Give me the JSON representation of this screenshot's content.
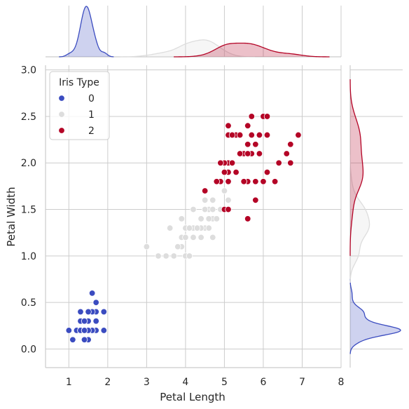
{
  "chart_data": {
    "type": "scatter",
    "xlabel": "Petal Length",
    "ylabel": "Petal Width",
    "xlim": [
      0.4,
      8.0
    ],
    "ylim": [
      -0.2,
      3.05
    ],
    "xticks": [
      1,
      2,
      3,
      4,
      5,
      6,
      7,
      8
    ],
    "yticks": [
      "0.0",
      "0.5",
      "1.0",
      "1.5",
      "2.0",
      "2.5",
      "3.0"
    ],
    "grid": true,
    "legend": {
      "title": "Iris Type",
      "placement": "upper-left"
    },
    "marginals": "kde",
    "series": [
      {
        "name": "0",
        "color": "#3b4cc0",
        "points": [
          [
            1.4,
            0.2
          ],
          [
            1.4,
            0.2
          ],
          [
            1.3,
            0.2
          ],
          [
            1.5,
            0.2
          ],
          [
            1.4,
            0.2
          ],
          [
            1.7,
            0.4
          ],
          [
            1.4,
            0.3
          ],
          [
            1.5,
            0.2
          ],
          [
            1.4,
            0.2
          ],
          [
            1.5,
            0.1
          ],
          [
            1.5,
            0.2
          ],
          [
            1.6,
            0.2
          ],
          [
            1.4,
            0.1
          ],
          [
            1.1,
            0.1
          ],
          [
            1.2,
            0.2
          ],
          [
            1.5,
            0.4
          ],
          [
            1.3,
            0.4
          ],
          [
            1.4,
            0.3
          ],
          [
            1.7,
            0.3
          ],
          [
            1.5,
            0.3
          ],
          [
            1.7,
            0.2
          ],
          [
            1.5,
            0.4
          ],
          [
            1.0,
            0.2
          ],
          [
            1.7,
            0.5
          ],
          [
            1.9,
            0.2
          ],
          [
            1.6,
            0.2
          ],
          [
            1.6,
            0.4
          ],
          [
            1.5,
            0.2
          ],
          [
            1.4,
            0.2
          ],
          [
            1.6,
            0.2
          ],
          [
            1.6,
            0.2
          ],
          [
            1.5,
            0.4
          ],
          [
            1.5,
            0.1
          ],
          [
            1.4,
            0.2
          ],
          [
            1.5,
            0.2
          ],
          [
            1.2,
            0.2
          ],
          [
            1.3,
            0.2
          ],
          [
            1.4,
            0.1
          ],
          [
            1.3,
            0.2
          ],
          [
            1.5,
            0.2
          ],
          [
            1.3,
            0.3
          ],
          [
            1.3,
            0.3
          ],
          [
            1.3,
            0.2
          ],
          [
            1.6,
            0.6
          ],
          [
            1.9,
            0.4
          ],
          [
            1.4,
            0.3
          ],
          [
            1.6,
            0.2
          ],
          [
            1.4,
            0.2
          ],
          [
            1.5,
            0.2
          ],
          [
            1.4,
            0.2
          ]
        ]
      },
      {
        "name": "1",
        "color": "#dddddd",
        "points": [
          [
            4.7,
            1.4
          ],
          [
            4.5,
            1.5
          ],
          [
            4.9,
            1.5
          ],
          [
            4.0,
            1.3
          ],
          [
            4.6,
            1.5
          ],
          [
            4.5,
            1.3
          ],
          [
            4.7,
            1.6
          ],
          [
            3.3,
            1.0
          ],
          [
            4.6,
            1.3
          ],
          [
            3.9,
            1.4
          ],
          [
            3.5,
            1.0
          ],
          [
            4.2,
            1.5
          ],
          [
            4.0,
            1.0
          ],
          [
            4.7,
            1.4
          ],
          [
            3.6,
            1.3
          ],
          [
            4.4,
            1.4
          ],
          [
            4.5,
            1.5
          ],
          [
            4.1,
            1.0
          ],
          [
            4.5,
            1.5
          ],
          [
            3.9,
            1.1
          ],
          [
            4.8,
            1.8
          ],
          [
            4.0,
            1.3
          ],
          [
            4.9,
            1.5
          ],
          [
            4.7,
            1.2
          ],
          [
            4.3,
            1.3
          ],
          [
            4.4,
            1.4
          ],
          [
            4.8,
            1.4
          ],
          [
            5.0,
            1.7
          ],
          [
            4.5,
            1.5
          ],
          [
            3.5,
            1.0
          ],
          [
            3.8,
            1.1
          ],
          [
            3.7,
            1.0
          ],
          [
            3.9,
            1.2
          ],
          [
            5.1,
            1.6
          ],
          [
            4.5,
            1.5
          ],
          [
            4.5,
            1.6
          ],
          [
            4.7,
            1.5
          ],
          [
            4.4,
            1.3
          ],
          [
            4.1,
            1.3
          ],
          [
            4.0,
            1.3
          ],
          [
            4.4,
            1.2
          ],
          [
            4.6,
            1.4
          ],
          [
            4.0,
            1.2
          ],
          [
            3.3,
            1.0
          ],
          [
            4.2,
            1.3
          ],
          [
            4.2,
            1.2
          ],
          [
            4.2,
            1.3
          ],
          [
            4.3,
            1.3
          ],
          [
            3.0,
            1.1
          ],
          [
            4.1,
            1.3
          ]
        ]
      },
      {
        "name": "2",
        "color": "#b40426",
        "points": [
          [
            6.0,
            2.5
          ],
          [
            5.1,
            1.9
          ],
          [
            5.9,
            2.1
          ],
          [
            5.6,
            1.8
          ],
          [
            5.8,
            2.2
          ],
          [
            6.6,
            2.1
          ],
          [
            4.5,
            1.7
          ],
          [
            6.3,
            1.8
          ],
          [
            5.8,
            1.8
          ],
          [
            6.1,
            2.5
          ],
          [
            5.1,
            2.0
          ],
          [
            5.3,
            1.9
          ],
          [
            5.5,
            2.1
          ],
          [
            5.0,
            2.0
          ],
          [
            5.1,
            2.4
          ],
          [
            5.3,
            2.3
          ],
          [
            5.5,
            1.8
          ],
          [
            6.7,
            2.2
          ],
          [
            6.9,
            2.3
          ],
          [
            5.0,
            1.5
          ],
          [
            5.7,
            2.3
          ],
          [
            4.9,
            2.0
          ],
          [
            6.7,
            2.0
          ],
          [
            4.9,
            1.8
          ],
          [
            5.7,
            2.1
          ],
          [
            6.0,
            1.8
          ],
          [
            4.8,
            1.8
          ],
          [
            4.9,
            1.8
          ],
          [
            5.6,
            2.1
          ],
          [
            5.8,
            1.6
          ],
          [
            6.1,
            1.9
          ],
          [
            6.4,
            2.0
          ],
          [
            5.6,
            2.2
          ],
          [
            5.1,
            1.5
          ],
          [
            5.6,
            1.4
          ],
          [
            6.1,
            2.3
          ],
          [
            5.6,
            2.4
          ],
          [
            5.5,
            1.8
          ],
          [
            4.8,
            1.8
          ],
          [
            5.4,
            2.1
          ],
          [
            5.6,
            2.4
          ],
          [
            5.1,
            2.3
          ],
          [
            5.1,
            1.9
          ],
          [
            5.9,
            2.3
          ],
          [
            5.7,
            2.5
          ],
          [
            5.2,
            2.3
          ],
          [
            5.0,
            1.9
          ],
          [
            5.2,
            2.0
          ],
          [
            5.4,
            2.3
          ],
          [
            5.1,
            1.8
          ]
        ]
      }
    ]
  }
}
